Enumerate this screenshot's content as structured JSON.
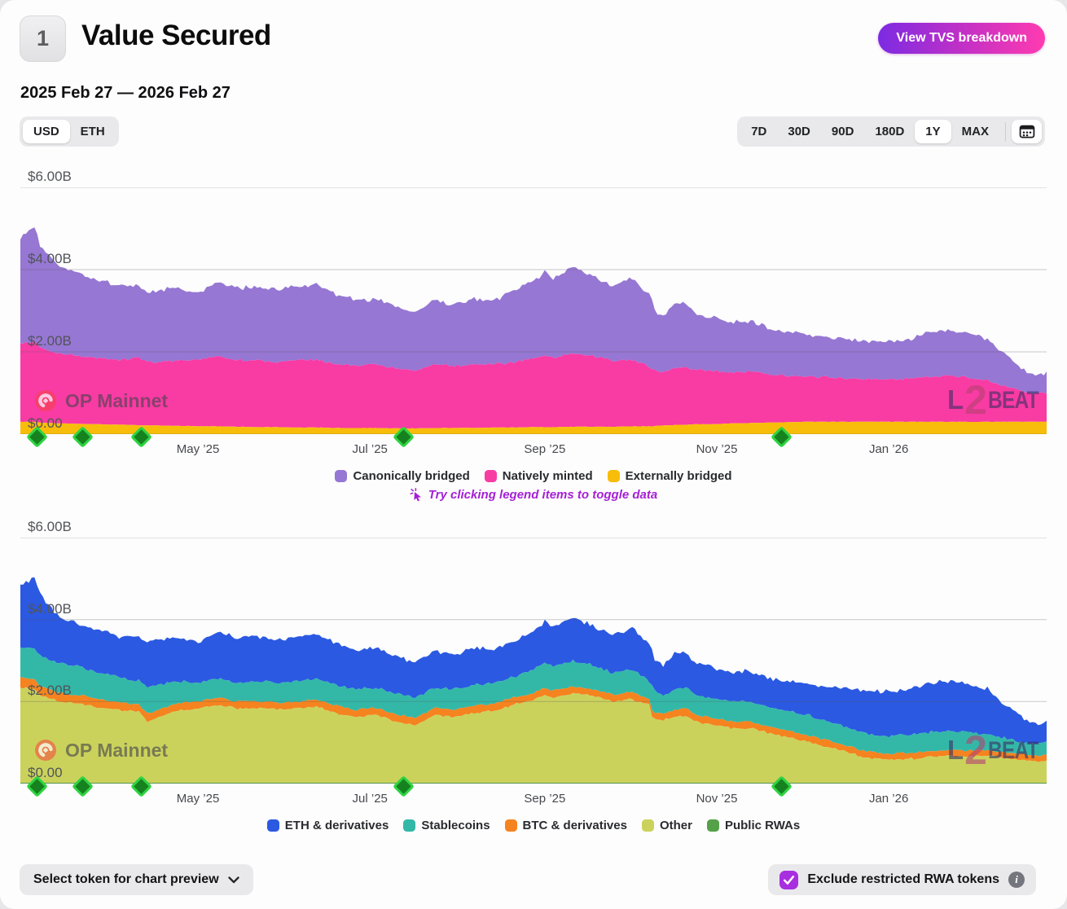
{
  "header": {
    "badge": "1",
    "title": "Value Secured",
    "breakdown_button": "View TVS breakdown",
    "date_range": "2025 Feb 27 — 2026 Feb 27"
  },
  "controls": {
    "currency": [
      "USD",
      "ETH"
    ],
    "selected_currency": "USD",
    "ranges": [
      "7D",
      "30D",
      "90D",
      "180D",
      "1Y",
      "MAX"
    ],
    "selected_range": "1Y",
    "calendar_icon": "calendar-icon"
  },
  "hint": {
    "icon": "cursor-click-icon",
    "text": "Try clicking legend items to toggle data"
  },
  "watermark": {
    "name": "OP Mainnet",
    "logo": "op-mainnet-logo"
  },
  "brand": {
    "part1": "L",
    "part2": "2",
    "part3": "BEAT"
  },
  "footer": {
    "select_token_label": "Select token for chart preview",
    "exclude_label": "Exclude restricted RWA tokens",
    "exclude_checked": true
  },
  "colors": {
    "accent_gradient_start": "#7c2be2",
    "accent_gradient_end": "#ff3bb0",
    "hint_purple": "#a51fd6",
    "checkbox_purple": "#a82ee0",
    "milestone_green_fill": "#15821f",
    "milestone_green_border": "#2fd341"
  },
  "chart_data": [
    {
      "type": "area",
      "stacked": true,
      "name": "value-secured-by-bridge-type",
      "unit": "USD billions",
      "ylim": [
        0,
        6
      ],
      "grid": true,
      "ytick_labels": [
        "$6.00B",
        "$4.00B",
        "$2.00B",
        "$0.00"
      ],
      "xtick_labels": [
        "May ’25",
        "Jul ’25",
        "Sep ’25",
        "Nov ’25",
        "Jan ’26"
      ],
      "xtick_days": [
        63,
        124,
        186,
        247,
        308
      ],
      "x_range_days": [
        0,
        364
      ],
      "x_start_label": "2025 Feb 27",
      "x_end_label": "2026 Feb 27",
      "milestone_days": [
        6,
        22,
        43,
        136,
        270
      ],
      "jitter": [
        0.07,
        0.04,
        0.006
      ],
      "x_days": [
        0,
        5,
        7,
        14,
        21,
        28,
        35,
        42,
        45,
        49,
        56,
        63,
        70,
        77,
        84,
        91,
        98,
        105,
        112,
        119,
        126,
        133,
        140,
        147,
        154,
        161,
        168,
        175,
        182,
        186,
        189,
        196,
        203,
        210,
        217,
        221,
        223,
        224,
        225,
        228,
        232,
        236,
        240,
        245,
        252,
        259,
        266,
        273,
        280,
        287,
        294,
        301,
        308,
        315,
        322,
        329,
        336,
        343,
        350,
        357,
        361,
        364
      ],
      "series": [
        {
          "name": "Canonically bridged",
          "color": "#9677d3",
          "stack_top": [
            4.8,
            5.05,
            4.6,
            4.05,
            3.9,
            3.75,
            3.6,
            3.6,
            3.45,
            3.5,
            3.55,
            3.45,
            3.7,
            3.55,
            3.6,
            3.5,
            3.6,
            3.65,
            3.4,
            3.25,
            3.3,
            3.1,
            2.95,
            3.25,
            3.15,
            3.3,
            3.25,
            3.5,
            3.7,
            3.95,
            3.8,
            4.05,
            3.85,
            3.6,
            3.8,
            3.5,
            3.4,
            3.25,
            3.0,
            2.85,
            3.15,
            3.2,
            2.9,
            2.85,
            2.7,
            2.75,
            2.55,
            2.5,
            2.4,
            2.35,
            2.3,
            2.25,
            2.25,
            2.3,
            2.45,
            2.5,
            2.45,
            2.3,
            1.9,
            1.5,
            1.42,
            1.5
          ]
        },
        {
          "name": "Natively minted",
          "color": "#f93ba4",
          "stack_top": [
            2.2,
            2.25,
            2.1,
            1.95,
            1.9,
            1.85,
            1.8,
            1.85,
            1.75,
            1.75,
            1.8,
            1.8,
            1.9,
            1.8,
            1.8,
            1.75,
            1.8,
            1.8,
            1.7,
            1.65,
            1.7,
            1.6,
            1.55,
            1.7,
            1.65,
            1.7,
            1.7,
            1.75,
            1.85,
            1.9,
            1.85,
            1.95,
            1.9,
            1.8,
            1.8,
            1.7,
            1.62,
            1.58,
            1.55,
            1.5,
            1.6,
            1.62,
            1.55,
            1.55,
            1.5,
            1.52,
            1.45,
            1.42,
            1.4,
            1.38,
            1.35,
            1.33,
            1.33,
            1.35,
            1.4,
            1.42,
            1.38,
            1.3,
            1.15,
            1.02,
            0.98,
            1.02
          ]
        },
        {
          "name": "Externally bridged",
          "color": "#f8bd0a",
          "stack_top": [
            0.3,
            0.3,
            0.28,
            0.26,
            0.25,
            0.24,
            0.23,
            0.22,
            0.21,
            0.21,
            0.2,
            0.19,
            0.19,
            0.18,
            0.17,
            0.17,
            0.16,
            0.16,
            0.15,
            0.15,
            0.15,
            0.14,
            0.14,
            0.15,
            0.15,
            0.15,
            0.16,
            0.16,
            0.17,
            0.17,
            0.17,
            0.18,
            0.18,
            0.18,
            0.19,
            0.19,
            0.19,
            0.19,
            0.2,
            0.21,
            0.22,
            0.23,
            0.24,
            0.24,
            0.26,
            0.27,
            0.28,
            0.29,
            0.3,
            0.3,
            0.3,
            0.3,
            0.3,
            0.3,
            0.3,
            0.3,
            0.3,
            0.3,
            0.3,
            0.3,
            0.3,
            0.3
          ]
        }
      ]
    },
    {
      "type": "area",
      "stacked": true,
      "name": "value-secured-by-asset-category",
      "unit": "USD billions",
      "ylim": [
        0,
        6
      ],
      "grid": true,
      "ytick_labels": [
        "$6.00B",
        "$4.00B",
        "$2.00B",
        "$0.00"
      ],
      "xtick_labels": [
        "May ’25",
        "Jul ’25",
        "Sep ’25",
        "Nov ’25",
        "Jan ’26"
      ],
      "xtick_days": [
        63,
        124,
        186,
        247,
        308
      ],
      "x_range_days": [
        0,
        364
      ],
      "x_start_label": "2025 Feb 27",
      "x_end_label": "2026 Feb 27",
      "milestone_days": [
        6,
        22,
        43,
        136,
        270
      ],
      "jitter": [
        0.07,
        0.05,
        0.035,
        0.035,
        0
      ],
      "x_days": [
        0,
        5,
        7,
        14,
        21,
        28,
        35,
        42,
        45,
        49,
        56,
        63,
        70,
        77,
        84,
        91,
        98,
        105,
        112,
        119,
        126,
        133,
        140,
        147,
        154,
        161,
        168,
        175,
        182,
        186,
        189,
        196,
        203,
        210,
        217,
        221,
        223,
        224,
        225,
        228,
        232,
        236,
        240,
        245,
        252,
        259,
        266,
        273,
        280,
        287,
        294,
        301,
        308,
        315,
        322,
        329,
        336,
        343,
        350,
        357,
        361,
        364
      ],
      "series": [
        {
          "name": "ETH & derivatives",
          "color": "#2b59e2",
          "stack_top": [
            4.8,
            5.05,
            4.6,
            4.05,
            3.9,
            3.75,
            3.6,
            3.6,
            3.45,
            3.5,
            3.55,
            3.45,
            3.7,
            3.55,
            3.6,
            3.5,
            3.6,
            3.65,
            3.4,
            3.25,
            3.3,
            3.1,
            2.95,
            3.25,
            3.15,
            3.3,
            3.25,
            3.5,
            3.7,
            3.95,
            3.8,
            4.05,
            3.85,
            3.6,
            3.8,
            3.5,
            3.4,
            3.25,
            3.0,
            2.85,
            3.15,
            3.2,
            2.9,
            2.85,
            2.7,
            2.75,
            2.55,
            2.5,
            2.4,
            2.35,
            2.3,
            2.25,
            2.25,
            2.3,
            2.45,
            2.5,
            2.45,
            2.3,
            1.9,
            1.5,
            1.42,
            1.5
          ]
        },
        {
          "name": "Stablecoins",
          "color": "#33b8a8",
          "stack_top": [
            3.35,
            3.3,
            3.1,
            2.95,
            2.85,
            2.7,
            2.6,
            2.5,
            2.35,
            2.4,
            2.5,
            2.45,
            2.55,
            2.45,
            2.5,
            2.45,
            2.5,
            2.55,
            2.4,
            2.3,
            2.35,
            2.2,
            2.1,
            2.35,
            2.3,
            2.4,
            2.45,
            2.6,
            2.8,
            2.95,
            2.85,
            3.0,
            2.9,
            2.7,
            2.8,
            2.6,
            2.5,
            2.4,
            2.3,
            2.15,
            2.3,
            2.35,
            2.15,
            2.1,
            2.0,
            2.0,
            1.85,
            1.75,
            1.65,
            1.5,
            1.35,
            1.2,
            1.15,
            1.2,
            1.25,
            1.3,
            1.25,
            1.2,
            1.1,
            1.0,
            0.98,
            1.0
          ]
        },
        {
          "name": "BTC & derivatives",
          "color": "#f5831f",
          "stack_top": [
            2.6,
            2.55,
            2.38,
            2.2,
            2.15,
            2.05,
            1.98,
            1.92,
            1.72,
            1.8,
            1.95,
            2.0,
            2.1,
            2.0,
            2.02,
            1.97,
            2.0,
            2.05,
            1.9,
            1.8,
            1.85,
            1.7,
            1.6,
            1.85,
            1.8,
            1.9,
            1.95,
            2.1,
            2.22,
            2.32,
            2.27,
            2.37,
            2.3,
            2.17,
            2.22,
            2.1,
            2.08,
            1.78,
            1.73,
            1.72,
            1.8,
            1.82,
            1.67,
            1.62,
            1.52,
            1.5,
            1.38,
            1.28,
            1.16,
            1.04,
            0.9,
            0.77,
            0.72,
            0.75,
            0.78,
            0.82,
            0.8,
            0.82,
            0.76,
            0.7,
            0.68,
            0.7
          ]
        },
        {
          "name": "Other",
          "color": "#cbd25c",
          "stack_top": [
            2.35,
            2.3,
            2.15,
            2.0,
            1.95,
            1.85,
            1.8,
            1.75,
            1.5,
            1.62,
            1.78,
            1.82,
            1.92,
            1.83,
            1.85,
            1.8,
            1.83,
            1.88,
            1.72,
            1.62,
            1.68,
            1.52,
            1.42,
            1.68,
            1.62,
            1.72,
            1.78,
            1.92,
            2.05,
            2.15,
            2.1,
            2.2,
            2.15,
            2.0,
            2.05,
            1.95,
            1.95,
            1.62,
            1.58,
            1.55,
            1.62,
            1.65,
            1.5,
            1.45,
            1.35,
            1.35,
            1.22,
            1.12,
            1.0,
            0.88,
            0.75,
            0.62,
            0.58,
            0.6,
            0.64,
            0.68,
            0.66,
            0.68,
            0.62,
            0.56,
            0.55,
            0.58
          ]
        },
        {
          "name": "Public RWAs",
          "color": "#55a149",
          "stack_top": 0.02
        }
      ]
    }
  ]
}
